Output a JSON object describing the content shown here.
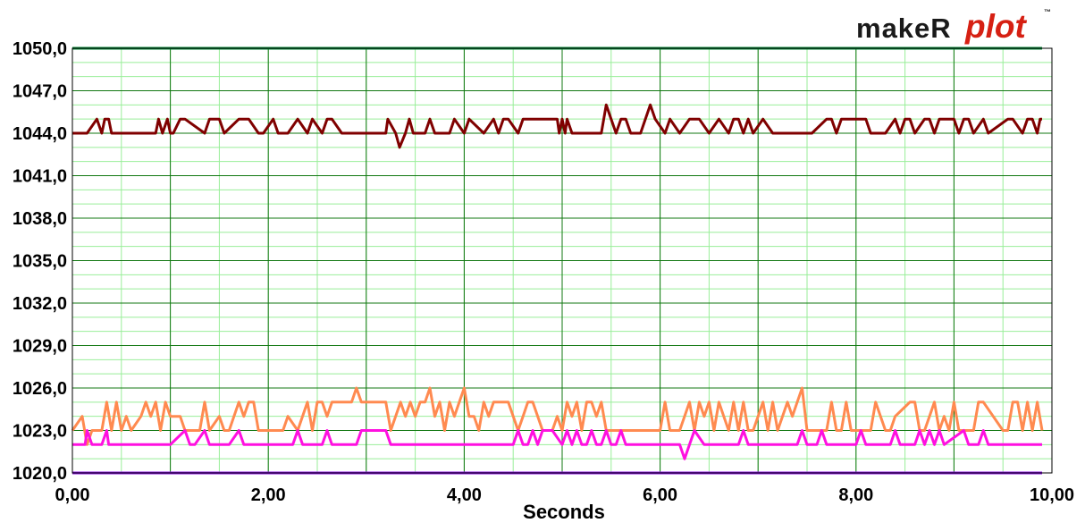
{
  "logo": {
    "part1": "makeR",
    "part2": "plot",
    "tm": "™"
  },
  "chart_data": {
    "type": "line",
    "title": "",
    "xlabel": "Seconds",
    "ylabel": "",
    "xlim": [
      0,
      10
    ],
    "ylim": [
      1020,
      1050
    ],
    "x_ticks": [
      "0,00",
      "2,00",
      "4,00",
      "6,00",
      "8,00",
      "10,00"
    ],
    "y_ticks": [
      "1050,0",
      "1047,0",
      "1044,0",
      "1041,0",
      "1038,0",
      "1035,0",
      "1032,0",
      "1029,0",
      "1026,0",
      "1023,0",
      "1020,0"
    ],
    "grid": true,
    "legend": "none",
    "colors": {
      "major_grid": "#117711",
      "minor_grid": "#99ee99",
      "axis": "#000000"
    },
    "series": [
      {
        "color": "#800000",
        "x": [
          0,
          0.15,
          0.25,
          0.3,
          0.33,
          0.37,
          0.4,
          0.6,
          0.85,
          0.88,
          0.92,
          0.97,
          1.0,
          1.03,
          1.1,
          1.15,
          1.35,
          1.4,
          1.5,
          1.55,
          1.7,
          1.8,
          1.9,
          1.95,
          2.05,
          2.1,
          2.2,
          2.3,
          2.4,
          2.45,
          2.55,
          2.6,
          2.65,
          2.75,
          2.9,
          3.2,
          3.22,
          3.3,
          3.34,
          3.4,
          3.44,
          3.48,
          3.6,
          3.65,
          3.7,
          3.8,
          3.85,
          3.9,
          4.0,
          4.05,
          4.2,
          4.3,
          4.35,
          4.4,
          4.45,
          4.55,
          4.6,
          4.85,
          4.95,
          4.97,
          5.0,
          5.03,
          5.05,
          5.1,
          5.15,
          5.4,
          5.45,
          5.5,
          5.55,
          5.6,
          5.65,
          5.7,
          5.8,
          5.9,
          5.95,
          6.05,
          6.1,
          6.2,
          6.3,
          6.4,
          6.5,
          6.6,
          6.7,
          6.75,
          6.8,
          6.85,
          6.9,
          6.95,
          7.05,
          7.15,
          7.2,
          7.3,
          7.35,
          7.55,
          7.7,
          7.75,
          7.8,
          7.85,
          8.1,
          8.15,
          8.3,
          8.4,
          8.45,
          8.5,
          8.55,
          8.6,
          8.7,
          8.75,
          8.8,
          8.85,
          9.0,
          9.05,
          9.1,
          9.15,
          9.2,
          9.3,
          9.35,
          9.55,
          9.6,
          9.7,
          9.75,
          9.8,
          9.85,
          9.88,
          9.9
        ],
        "y": [
          1044,
          1044,
          1045,
          1044,
          1045,
          1045,
          1044,
          1044,
          1044,
          1045,
          1044,
          1045,
          1044,
          1044,
          1045,
          1045,
          1044,
          1045,
          1045,
          1044,
          1045,
          1045,
          1044,
          1044,
          1045,
          1044,
          1044,
          1045,
          1044,
          1045,
          1044,
          1045,
          1045,
          1044,
          1044,
          1044,
          1045,
          1044,
          1043,
          1044,
          1045,
          1044,
          1044,
          1045,
          1044,
          1044,
          1044,
          1045,
          1044,
          1045,
          1044,
          1045,
          1044,
          1045,
          1045,
          1044,
          1045,
          1045,
          1045,
          1044,
          1045,
          1044,
          1045,
          1044,
          1044,
          1044,
          1046,
          1045,
          1044,
          1045,
          1045,
          1044,
          1044,
          1046,
          1045,
          1044,
          1045,
          1044,
          1045,
          1045,
          1044,
          1045,
          1044,
          1045,
          1045,
          1044,
          1045,
          1044,
          1045,
          1044,
          1044,
          1044,
          1044,
          1044,
          1045,
          1045,
          1044,
          1045,
          1045,
          1044,
          1044,
          1045,
          1044,
          1045,
          1045,
          1044,
          1045,
          1045,
          1044,
          1045,
          1045,
          1044,
          1045,
          1045,
          1044,
          1045,
          1044,
          1045,
          1045,
          1044,
          1045,
          1045,
          1044,
          1045,
          1045
        ]
      },
      {
        "color": "#ff8a50",
        "x": [
          0,
          0.1,
          0.15,
          0.2,
          0.3,
          0.35,
          0.4,
          0.45,
          0.5,
          0.55,
          0.6,
          0.7,
          0.75,
          0.8,
          0.85,
          0.9,
          0.95,
          1.0,
          1.05,
          1.1,
          1.15,
          1.3,
          1.35,
          1.4,
          1.5,
          1.55,
          1.6,
          1.65,
          1.7,
          1.75,
          1.8,
          1.85,
          1.9,
          1.95,
          2.0,
          2.05,
          2.1,
          2.15,
          2.2,
          2.3,
          2.4,
          2.45,
          2.5,
          2.55,
          2.6,
          2.65,
          2.8,
          2.85,
          2.9,
          2.95,
          3.0,
          3.2,
          3.25,
          3.35,
          3.4,
          3.45,
          3.5,
          3.55,
          3.6,
          3.65,
          3.7,
          3.75,
          3.8,
          3.85,
          3.9,
          3.95,
          4.0,
          4.05,
          4.1,
          4.15,
          4.2,
          4.25,
          4.3,
          4.35,
          4.4,
          4.45,
          4.55,
          4.6,
          4.65,
          4.7,
          4.8,
          4.85,
          4.9,
          4.95,
          5.0,
          5.05,
          5.1,
          5.15,
          5.2,
          5.25,
          5.3,
          5.35,
          5.4,
          5.45,
          5.5,
          5.55,
          5.6,
          5.65,
          5.7,
          5.75,
          5.8,
          5.9,
          6.0,
          6.05,
          6.1,
          6.2,
          6.3,
          6.35,
          6.4,
          6.45,
          6.5,
          6.55,
          6.6,
          6.65,
          6.7,
          6.75,
          6.8,
          6.85,
          6.9,
          6.95,
          7.0,
          7.05,
          7.1,
          7.15,
          7.2,
          7.3,
          7.35,
          7.4,
          7.45,
          7.5,
          7.55,
          7.6,
          7.65,
          7.7,
          7.75,
          7.8,
          7.85,
          7.9,
          7.95,
          8.05,
          8.1,
          8.15,
          8.2,
          8.3,
          8.35,
          8.4,
          8.55,
          8.6,
          8.65,
          8.7,
          8.75,
          8.8,
          8.85,
          8.9,
          8.95,
          9.0,
          9.05,
          9.1,
          9.2,
          9.25,
          9.3,
          9.5,
          9.55,
          9.6,
          9.65,
          9.7,
          9.75,
          9.8,
          9.85,
          9.9
        ],
        "y": [
          1023,
          1024,
          1022,
          1023,
          1023,
          1025,
          1023,
          1025,
          1023,
          1024,
          1023,
          1024,
          1025,
          1024,
          1025,
          1023,
          1025,
          1024,
          1024,
          1024,
          1023,
          1023,
          1025,
          1023,
          1024,
          1023,
          1023,
          1024,
          1025,
          1024,
          1025,
          1025,
          1023,
          1023,
          1023,
          1023,
          1023,
          1023,
          1024,
          1023,
          1025,
          1023,
          1025,
          1025,
          1024,
          1025,
          1025,
          1025,
          1026,
          1025,
          1025,
          1025,
          1023,
          1025,
          1024,
          1025,
          1024,
          1025,
          1025,
          1026,
          1024,
          1025,
          1023,
          1025,
          1024,
          1025,
          1026,
          1024,
          1024,
          1023,
          1025,
          1024,
          1025,
          1025,
          1025,
          1025,
          1023,
          1024,
          1025,
          1025,
          1023,
          1023,
          1023,
          1024,
          1023,
          1025,
          1024,
          1025,
          1023,
          1025,
          1025,
          1024,
          1025,
          1023,
          1023,
          1023,
          1023,
          1023,
          1023,
          1023,
          1023,
          1023,
          1023,
          1025,
          1023,
          1023,
          1025,
          1023,
          1025,
          1024,
          1025,
          1023,
          1025,
          1024,
          1023,
          1025,
          1023,
          1025,
          1023,
          1023,
          1024,
          1025,
          1023,
          1025,
          1023,
          1025,
          1024,
          1025,
          1026,
          1023,
          1023,
          1023,
          1023,
          1023,
          1025,
          1023,
          1023,
          1025,
          1023,
          1023,
          1023,
          1023,
          1025,
          1023,
          1023,
          1024,
          1025,
          1025,
          1023,
          1023,
          1024,
          1025,
          1023,
          1024,
          1023,
          1025,
          1023,
          1023,
          1023,
          1025,
          1025,
          1023,
          1023,
          1025,
          1025,
          1023,
          1025,
          1023,
          1025,
          1023
        ]
      },
      {
        "color": "#ff10e0",
        "x": [
          0,
          0.13,
          0.15,
          0.2,
          0.3,
          0.35,
          0.37,
          0.4,
          0.6,
          1.0,
          1.15,
          1.2,
          1.25,
          1.35,
          1.4,
          1.45,
          1.6,
          1.7,
          1.75,
          2.0,
          2.25,
          2.3,
          2.35,
          2.55,
          2.6,
          2.65,
          2.8,
          2.9,
          2.95,
          3.0,
          3.15,
          3.2,
          3.25,
          4.1,
          4.5,
          4.55,
          4.6,
          4.65,
          4.7,
          4.75,
          4.8,
          4.85,
          4.9,
          5.0,
          5.05,
          5.1,
          5.15,
          5.2,
          5.25,
          5.3,
          5.35,
          5.4,
          5.45,
          5.5,
          5.55,
          5.6,
          5.65,
          5.7,
          6.2,
          6.25,
          6.3,
          6.35,
          6.45,
          6.5,
          6.55,
          6.8,
          6.85,
          6.9,
          7.0,
          7.4,
          7.45,
          7.5,
          7.6,
          7.65,
          7.7,
          8.0,
          8.05,
          8.1,
          8.35,
          8.4,
          8.45,
          8.6,
          8.65,
          8.7,
          8.75,
          8.8,
          8.85,
          8.9,
          9.1,
          9.15,
          9.25,
          9.3,
          9.35,
          9.9
        ],
        "y": [
          1022,
          1022,
          1023,
          1022,
          1022,
          1023,
          1022,
          1022,
          1022,
          1022,
          1023,
          1022,
          1022,
          1023,
          1022,
          1022,
          1022,
          1023,
          1022,
          1022,
          1022,
          1023,
          1022,
          1022,
          1023,
          1022,
          1022,
          1022,
          1023,
          1023,
          1023,
          1023,
          1022,
          1022,
          1022,
          1023,
          1022,
          1022,
          1023,
          1022,
          1023,
          1023,
          1023,
          1022,
          1023,
          1022,
          1023,
          1022,
          1022,
          1023,
          1022,
          1022,
          1023,
          1022,
          1022,
          1023,
          1022,
          1022,
          1022,
          1021,
          1022,
          1023,
          1022,
          1022,
          1022,
          1022,
          1023,
          1022,
          1022,
          1022,
          1023,
          1022,
          1022,
          1023,
          1022,
          1022,
          1023,
          1022,
          1022,
          1023,
          1022,
          1022,
          1023,
          1022,
          1023,
          1022,
          1023,
          1022,
          1023,
          1022,
          1022,
          1023,
          1022,
          1022
        ]
      },
      {
        "color": "#8a10e0",
        "x": [
          0,
          9.9
        ],
        "y": [
          1020,
          1020
        ]
      },
      {
        "color": "#0a8a3a",
        "x": [
          0,
          9.9
        ],
        "y": [
          1050,
          1050
        ]
      }
    ]
  }
}
